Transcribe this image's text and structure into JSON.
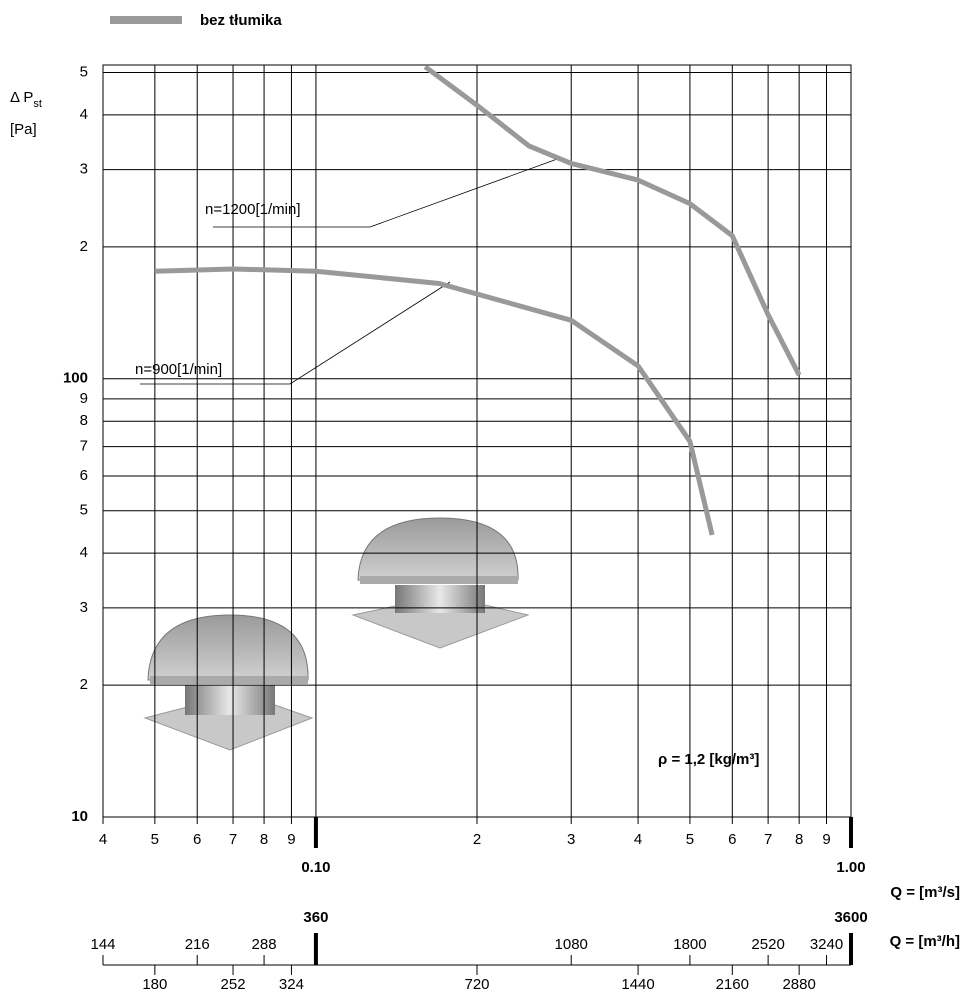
{
  "chart_data": {
    "type": "line",
    "legend": {
      "label": "bez tłumika",
      "color": "#999999"
    },
    "y_label": {
      "main": "Δ P",
      "sub": "st",
      "unit": "[Pa]"
    },
    "x_label": "Q = [m³/s]",
    "x2_label": "Q = [m³/h]",
    "annotation": "ρ = 1,2 [kg/m³]",
    "log_x": true,
    "log_y": true,
    "grid": true,
    "xlim": [
      0.04,
      1
    ],
    "xticks": [
      {
        "value": 0.04,
        "label": "4"
      },
      {
        "value": 0.05,
        "label": "5"
      },
      {
        "value": 0.06,
        "label": "6"
      },
      {
        "value": 0.07,
        "label": "7"
      },
      {
        "value": 0.08,
        "label": "8"
      },
      {
        "value": 0.09,
        "label": "9"
      },
      {
        "value": 0.1,
        "label": "0.10"
      },
      {
        "value": 0.2,
        "label": "2"
      },
      {
        "value": 0.3,
        "label": "3"
      },
      {
        "value": 0.4,
        "label": "4"
      },
      {
        "value": 0.5,
        "label": "5"
      },
      {
        "value": 0.6,
        "label": "6"
      },
      {
        "value": 0.7,
        "label": "7"
      },
      {
        "value": 0.8,
        "label": "8"
      },
      {
        "value": 0.9,
        "label": "9"
      },
      {
        "value": 1,
        "label": "1.00"
      }
    ],
    "x2lim": [
      144,
      3600
    ],
    "x2ticks": [
      144,
      180,
      216,
      252,
      288,
      324,
      360,
      720,
      1080,
      1440,
      1800,
      2160,
      2520,
      2880,
      3240,
      3600
    ],
    "ylim": [
      10,
      520
    ],
    "yticks": [
      10,
      {
        "value": 20,
        "label": "2"
      },
      {
        "value": 30,
        "label": "3"
      },
      {
        "value": 40,
        "label": "4"
      },
      {
        "value": 50,
        "label": "5"
      },
      {
        "value": 60,
        "label": "6"
      },
      {
        "value": 70,
        "label": "7"
      },
      {
        "value": 80,
        "label": "8"
      },
      {
        "value": 90,
        "label": "9"
      },
      100,
      {
        "value": 200,
        "label": "2"
      },
      {
        "value": 300,
        "label": "3"
      },
      {
        "value": 400,
        "label": "4"
      },
      {
        "value": 500,
        "label": "5"
      }
    ],
    "series": [
      {
        "name": "n=1200[1/min]",
        "color": "#999999",
        "x": [
          0.16,
          0.2,
          0.25,
          0.3,
          0.4,
          0.5,
          0.6,
          0.7,
          0.8
        ],
        "values": [
          515,
          421,
          340,
          310,
          284,
          251,
          212,
          140,
          102
        ]
      },
      {
        "name": "n=900[1/min]",
        "color": "#999999",
        "x": [
          0.05,
          0.07,
          0.1,
          0.17,
          0.3,
          0.4,
          0.5,
          0.55
        ],
        "values": [
          176,
          178,
          176,
          165,
          136,
          107,
          72,
          44
        ]
      }
    ]
  }
}
